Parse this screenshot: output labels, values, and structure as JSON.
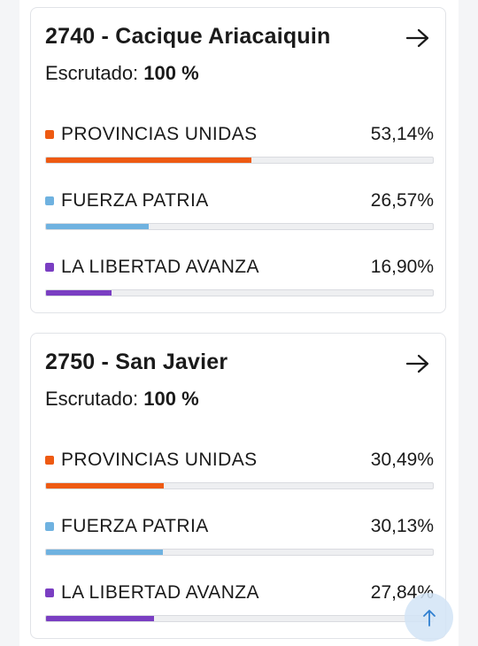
{
  "cards": [
    {
      "title": "2740 - Cacique Ariacaiquin",
      "scrutiny_label": "Escrutado:",
      "scrutiny_value": "100 %",
      "arrow_icon": "arrow-right-icon",
      "parties": [
        {
          "name": "PROVINCIAS UNIDAS",
          "percent_text": "53,14%",
          "percent": 53.14,
          "color": "#ee5a12"
        },
        {
          "name": "FUERZA PATRIA",
          "percent_text": "26,57%",
          "percent": 26.57,
          "color": "#6fb2e0"
        },
        {
          "name": "LA LIBERTAD AVANZA",
          "percent_text": "16,90%",
          "percent": 16.9,
          "color": "#7a3ec2"
        }
      ]
    },
    {
      "title": "2750 - San Javier",
      "scrutiny_label": "Escrutado:",
      "scrutiny_value": "100 %",
      "arrow_icon": "arrow-right-icon",
      "parties": [
        {
          "name": "PROVINCIAS UNIDAS",
          "percent_text": "30,49%",
          "percent": 30.49,
          "color": "#ee5a12"
        },
        {
          "name": "FUERZA PATRIA",
          "percent_text": "30,13%",
          "percent": 30.13,
          "color": "#6fb2e0"
        },
        {
          "name": "LA LIBERTAD AVANZA",
          "percent_text": "27,84%",
          "percent": 27.84,
          "color": "#7a3ec2"
        }
      ]
    }
  ],
  "scroll_top_icon": "arrow-up-icon"
}
